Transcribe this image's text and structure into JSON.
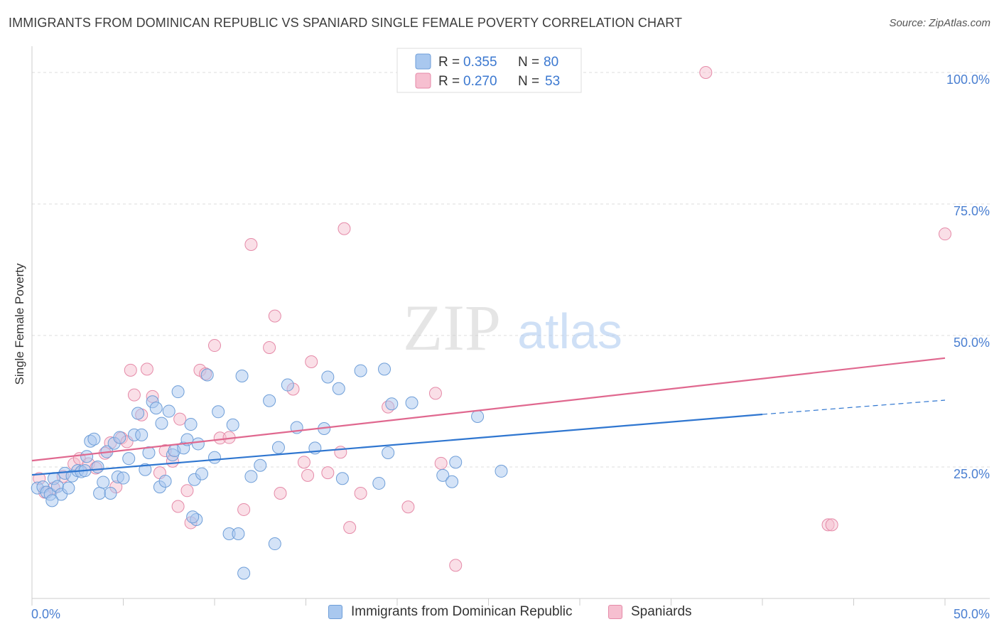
{
  "title": "IMMIGRANTS FROM DOMINICAN REPUBLIC VS SPANIARD SINGLE FEMALE POVERTY CORRELATION CHART",
  "source": "Source: ZipAtlas.com",
  "watermark": {
    "zip": "ZIP",
    "atlas": "atlas"
  },
  "colors": {
    "blue_fill": "#a9c8ef",
    "blue_stroke": "#6e9ed8",
    "blue_line": "#2f76d0",
    "pink_fill": "#f6bfd0",
    "pink_stroke": "#e58aa8",
    "pink_line": "#e0688f",
    "axis_text": "#4a7fd1",
    "grid": "#dddddd"
  },
  "legend_top": [
    {
      "series": "blue",
      "r_label": "R =",
      "r_value": "0.355",
      "n_label": "N =",
      "n_value": "80"
    },
    {
      "series": "pink",
      "r_label": "R =",
      "r_value": "0.270",
      "n_label": "N =",
      "n_value": "53"
    }
  ],
  "legend_bottom": [
    {
      "series": "blue",
      "label": "Immigrants from Dominican Republic"
    },
    {
      "series": "pink",
      "label": "Spaniards"
    }
  ],
  "chart_data": {
    "type": "scatter",
    "ylabel": "Single Female Poverty",
    "xlabel": "",
    "xlim": [
      0,
      50
    ],
    "ylim": [
      0,
      105
    ],
    "x_tick_labels": [
      {
        "value": 0,
        "label": "0.0%"
      },
      {
        "value": 50,
        "label": "50.0%"
      }
    ],
    "y_tick_labels": [
      {
        "value": 25,
        "label": "25.0%"
      },
      {
        "value": 50,
        "label": "50.0%"
      },
      {
        "value": 75,
        "label": "75.0%"
      },
      {
        "value": 100,
        "label": "100.0%"
      }
    ],
    "series": [
      {
        "name": "Immigrants from Dominican Republic",
        "color_key": "blue",
        "trend": {
          "x0": 0,
          "y0": 23.5,
          "x1": 40,
          "y1": 35.0,
          "dash_x1": 50,
          "dash_y1": 37.7
        },
        "points": [
          [
            0.3,
            21.0
          ],
          [
            0.6,
            21.2
          ],
          [
            0.8,
            20.2
          ],
          [
            1.0,
            19.8
          ],
          [
            1.2,
            22.8
          ],
          [
            1.4,
            21.3
          ],
          [
            1.6,
            19.8
          ],
          [
            1.8,
            23.8
          ],
          [
            2.0,
            21.0
          ],
          [
            2.2,
            23.3
          ],
          [
            2.5,
            24.3
          ],
          [
            2.7,
            24.1
          ],
          [
            2.9,
            24.3
          ],
          [
            3.0,
            27.0
          ],
          [
            3.2,
            29.9
          ],
          [
            3.4,
            30.3
          ],
          [
            3.6,
            25.0
          ],
          [
            3.7,
            20.0
          ],
          [
            3.9,
            22.1
          ],
          [
            4.1,
            27.9
          ],
          [
            4.3,
            20.0
          ],
          [
            4.5,
            29.5
          ],
          [
            4.7,
            23.1
          ],
          [
            4.8,
            30.6
          ],
          [
            5.0,
            22.9
          ],
          [
            5.3,
            26.6
          ],
          [
            5.6,
            31.1
          ],
          [
            5.8,
            35.2
          ],
          [
            6.0,
            31.1
          ],
          [
            6.2,
            24.5
          ],
          [
            6.4,
            27.7
          ],
          [
            6.6,
            37.4
          ],
          [
            6.8,
            36.2
          ],
          [
            7.0,
            21.2
          ],
          [
            7.1,
            33.3
          ],
          [
            7.3,
            22.3
          ],
          [
            7.5,
            35.6
          ],
          [
            7.7,
            27.3
          ],
          [
            7.8,
            28.1
          ],
          [
            8.0,
            39.3
          ],
          [
            8.3,
            28.6
          ],
          [
            8.5,
            30.2
          ],
          [
            8.7,
            33.1
          ],
          [
            8.9,
            22.6
          ],
          [
            9.1,
            29.4
          ],
          [
            9.3,
            23.7
          ],
          [
            9.6,
            42.5
          ],
          [
            10.0,
            26.8
          ],
          [
            10.2,
            35.5
          ],
          [
            11.0,
            33.0
          ],
          [
            11.5,
            42.3
          ],
          [
            12.0,
            23.2
          ],
          [
            12.5,
            25.3
          ],
          [
            13.0,
            37.6
          ],
          [
            13.5,
            28.7
          ],
          [
            14.0,
            40.6
          ],
          [
            14.5,
            32.5
          ],
          [
            15.5,
            28.6
          ],
          [
            16.0,
            32.3
          ],
          [
            16.2,
            42.1
          ],
          [
            16.8,
            39.9
          ],
          [
            17.0,
            22.8
          ],
          [
            18.0,
            43.3
          ],
          [
            19.0,
            21.9
          ],
          [
            19.3,
            43.6
          ],
          [
            19.5,
            27.7
          ],
          [
            19.7,
            37.0
          ],
          [
            20.8,
            37.2
          ],
          [
            22.5,
            23.4
          ],
          [
            23.0,
            22.2
          ],
          [
            23.2,
            25.9
          ],
          [
            24.4,
            34.6
          ],
          [
            25.7,
            24.2
          ],
          [
            10.8,
            12.3
          ],
          [
            11.6,
            4.8
          ],
          [
            13.3,
            10.4
          ],
          [
            11.3,
            12.3
          ],
          [
            9.0,
            15.0
          ],
          [
            8.8,
            15.5
          ],
          [
            1.1,
            18.6
          ]
        ]
      },
      {
        "name": "Spaniards",
        "color_key": "pink",
        "trend": {
          "x0": 0,
          "y0": 26.2,
          "x1": 50,
          "y1": 45.7
        },
        "points": [
          [
            0.4,
            22.8
          ],
          [
            0.7,
            20.2
          ],
          [
            1.2,
            21.0
          ],
          [
            1.7,
            23.2
          ],
          [
            2.3,
            25.6
          ],
          [
            2.6,
            26.6
          ],
          [
            3.1,
            25.6
          ],
          [
            3.5,
            24.8
          ],
          [
            4.0,
            27.6
          ],
          [
            4.3,
            29.6
          ],
          [
            4.6,
            21.2
          ],
          [
            4.9,
            30.5
          ],
          [
            5.2,
            29.8
          ],
          [
            5.4,
            43.4
          ],
          [
            5.6,
            38.7
          ],
          [
            6.0,
            34.9
          ],
          [
            6.3,
            43.6
          ],
          [
            6.6,
            38.4
          ],
          [
            7.0,
            23.9
          ],
          [
            7.3,
            28.1
          ],
          [
            7.7,
            26.1
          ],
          [
            8.1,
            34.1
          ],
          [
            8.5,
            20.5
          ],
          [
            8.7,
            14.4
          ],
          [
            9.2,
            43.4
          ],
          [
            9.5,
            42.7
          ],
          [
            10.0,
            48.1
          ],
          [
            10.3,
            30.5
          ],
          [
            10.8,
            30.6
          ],
          [
            11.6,
            16.9
          ],
          [
            12.0,
            67.3
          ],
          [
            13.0,
            47.7
          ],
          [
            13.3,
            53.7
          ],
          [
            13.6,
            20.0
          ],
          [
            14.3,
            39.8
          ],
          [
            14.9,
            25.9
          ],
          [
            15.1,
            23.4
          ],
          [
            15.3,
            45.0
          ],
          [
            16.2,
            23.9
          ],
          [
            16.9,
            27.8
          ],
          [
            17.1,
            70.3
          ],
          [
            17.4,
            13.5
          ],
          [
            18.0,
            20.0
          ],
          [
            19.5,
            36.4
          ],
          [
            20.6,
            17.4
          ],
          [
            22.1,
            39.0
          ],
          [
            22.4,
            25.7
          ],
          [
            23.2,
            6.3
          ],
          [
            36.9,
            100.0
          ],
          [
            43.6,
            14.0
          ],
          [
            43.8,
            14.0
          ],
          [
            50.0,
            69.3
          ],
          [
            8.0,
            17.5
          ]
        ]
      }
    ]
  }
}
